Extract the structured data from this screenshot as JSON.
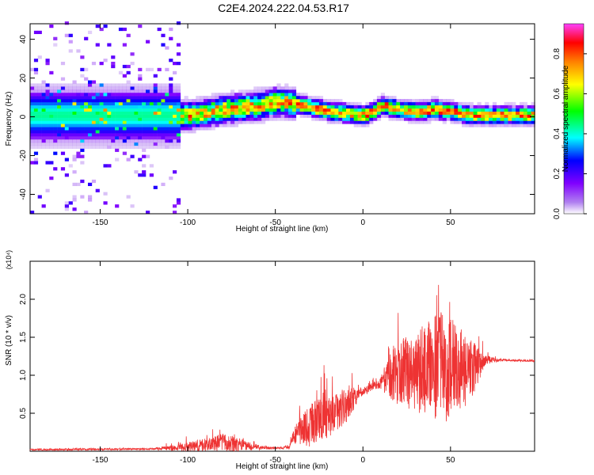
{
  "title": "C2E4.2024.222.04.53.R17",
  "chart_data": [
    {
      "type": "heatmap",
      "xlabel": "Height of straight line (km)",
      "ylabel": "Frequency (Hz)",
      "xlim": [
        -190,
        98
      ],
      "ylim": [
        -50,
        48
      ],
      "xticks": [
        -150,
        -100,
        -50,
        0,
        50
      ],
      "xtick_labels": [
        "-150",
        "-100",
        "-50",
        "0",
        "50"
      ],
      "yticks": [
        -40,
        -20,
        0,
        20,
        40
      ],
      "ytick_labels": [
        "-40",
        "-20",
        "0",
        "20",
        "40"
      ],
      "ridge": {
        "x": [
          -190,
          -150,
          -120,
          -100,
          -80,
          -60,
          -50,
          -40,
          -30,
          -20,
          -10,
          0,
          5,
          10,
          20,
          30,
          40,
          50,
          60,
          70,
          80,
          90,
          98
        ],
        "freq": [
          0,
          0,
          0,
          0,
          3,
          5,
          7,
          6,
          4,
          2,
          1,
          0,
          2,
          5,
          3,
          2,
          3,
          2,
          0,
          0,
          0,
          0,
          0
        ]
      },
      "colorbar": {
        "label": "Normalized spectral amplitude",
        "range": [
          0.0,
          0.95
        ],
        "ticks": [
          0.0,
          0.2,
          0.4,
          0.6,
          0.8
        ],
        "tick_labels": [
          "0.0",
          "0.2",
          "0.4",
          "0.6",
          "0.8"
        ],
        "colormap": [
          "#d8c4f2",
          "#8000ff",
          "#0000ff",
          "#00ffff",
          "#00ff00",
          "#ffff00",
          "#ff8000",
          "#ff0000",
          "#ff00ff"
        ]
      }
    },
    {
      "type": "line",
      "xlabel": "Height of straight line (km)",
      "ylabel": "SNR (10 * v/v)",
      "y_multiplier": "(x10⁴)",
      "xlim": [
        -190,
        98
      ],
      "ylim": [
        0,
        2.5
      ],
      "xticks": [
        -150,
        -100,
        -50,
        0,
        50
      ],
      "xtick_labels": [
        "-150",
        "-100",
        "-50",
        "0",
        "50"
      ],
      "yticks": [
        0.5,
        1.0,
        1.5,
        2.0
      ],
      "ytick_labels": [
        "0.5",
        "1.0",
        "1.5",
        "2.0"
      ],
      "color": "#ee3333",
      "envelope": {
        "x": [
          -190,
          -120,
          -110,
          -100,
          -90,
          -80,
          -70,
          -60,
          -50,
          -42,
          -40,
          -35,
          -30,
          -20,
          -10,
          -5,
          0,
          5,
          10,
          15,
          20,
          30,
          40,
          45,
          50,
          60,
          70,
          80,
          98
        ],
        "base": [
          0.02,
          0.03,
          0.04,
          0.06,
          0.08,
          0.12,
          0.08,
          0.05,
          0.04,
          0.05,
          0.2,
          0.28,
          0.35,
          0.45,
          0.6,
          0.7,
          0.78,
          0.85,
          0.9,
          1.0,
          1.02,
          1.05,
          1.1,
          1.12,
          1.1,
          1.05,
          1.2,
          1.2,
          1.19
        ],
        "amp": [
          0.015,
          0.02,
          0.05,
          0.1,
          0.15,
          0.2,
          0.15,
          0.06,
          0.02,
          0.03,
          0.15,
          0.35,
          0.5,
          0.45,
          0.4,
          0.25,
          0.1,
          0.08,
          0.12,
          0.5,
          0.7,
          0.9,
          1.1,
          1.3,
          1.1,
          0.8,
          0.1,
          0.02,
          0.02
        ]
      }
    }
  ]
}
